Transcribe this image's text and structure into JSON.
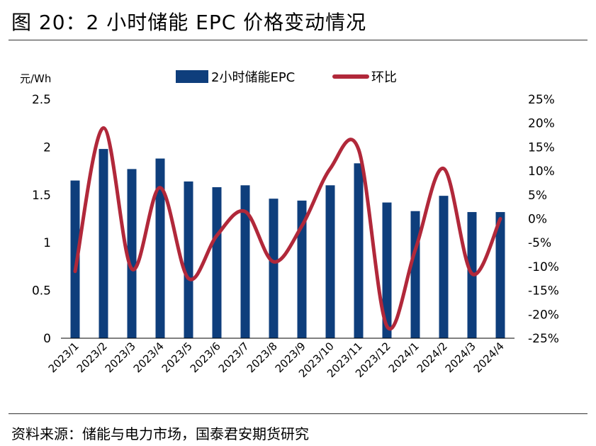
{
  "figure_title": "图 20：2 小时储能 EPC 价格变动情况",
  "source_note": "资料来源：储能与电力市场，国泰君安期货研究",
  "colors": {
    "bar": "#0e3e7c",
    "line": "#b1283a"
  },
  "chart_data": {
    "type": "bar+line",
    "categories": [
      "2023/1",
      "2023/2",
      "2023/3",
      "2023/4",
      "2023/5",
      "2023/6",
      "2023/7",
      "2023/8",
      "2023/9",
      "2023/10",
      "2023/11",
      "2023/12",
      "2024/1",
      "2024/2",
      "2024/3",
      "2024/4"
    ],
    "series": [
      {
        "name": "2小时储能EPC",
        "type": "bar",
        "axis": "left",
        "values": [
          1.65,
          1.98,
          1.77,
          1.88,
          1.64,
          1.58,
          1.6,
          1.46,
          1.44,
          1.6,
          1.83,
          1.42,
          1.33,
          1.49,
          1.32,
          1.32
        ]
      },
      {
        "name": "环比",
        "type": "line",
        "axis": "right",
        "values": [
          -11,
          19,
          -10.5,
          6.5,
          -12.5,
          -3.5,
          1.5,
          -9,
          -1.5,
          10.5,
          14.5,
          -22.5,
          -6.5,
          10.5,
          -11.5,
          0
        ]
      }
    ],
    "y_left": {
      "label": "元/Wh",
      "min": 0,
      "max": 2.5,
      "ticks": [
        "0",
        "0.5",
        "1",
        "1.5",
        "2",
        "2.5"
      ]
    },
    "y_right": {
      "min": -25,
      "max": 25,
      "ticks": [
        "-25%",
        "-20%",
        "-15%",
        "-10%",
        "-5%",
        "0%",
        "5%",
        "10%",
        "15%",
        "20%",
        "25%"
      ]
    },
    "legend": {
      "position": "top"
    },
    "grid": false
  }
}
